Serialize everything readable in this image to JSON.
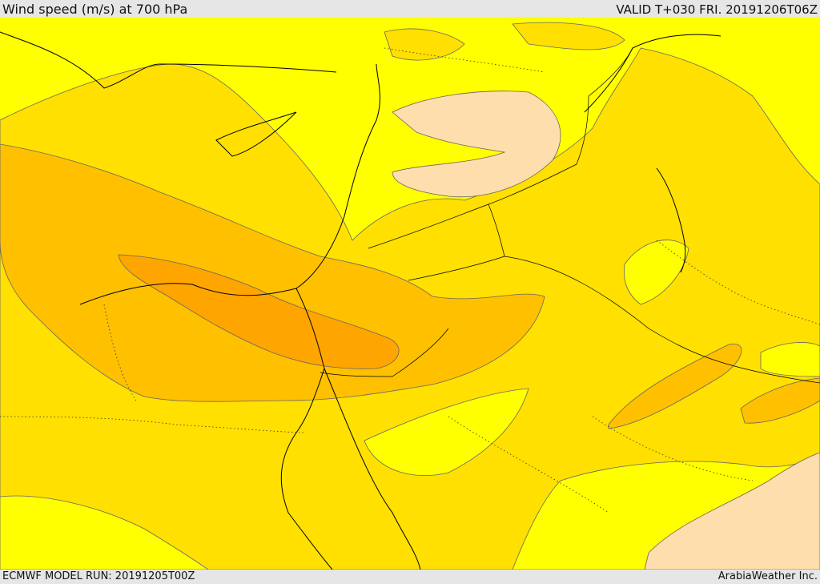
{
  "header": {
    "title": "Wind speed (m/s) at 700 hPa",
    "valid": "VALID T+030 FRI. 20191206T06Z"
  },
  "footer": {
    "model_run": "ECMWF MODEL RUN: 20191205T00Z",
    "credit": "ArabiaWeather Inc."
  },
  "colors": {
    "level_1": "#ffff00",
    "level_2": "#ffe000",
    "level_3": "#ffc000",
    "level_4": "#ffa500",
    "level_5": "#ffdead",
    "coast": "#000000",
    "contour": "#555555",
    "frame": "#e6e6e6"
  }
}
